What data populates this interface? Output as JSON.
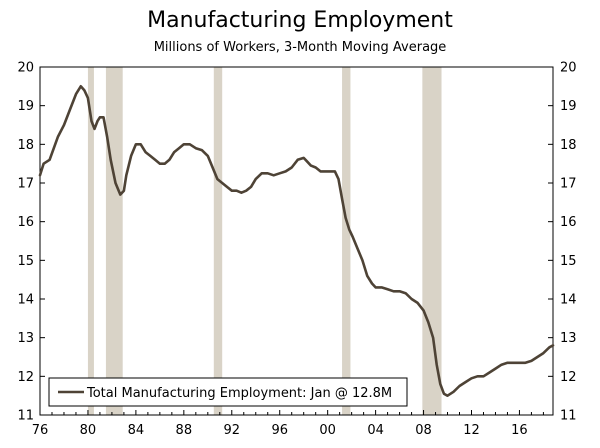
{
  "chart_data": {
    "type": "line",
    "title": "Manufacturing Employment",
    "subtitle": "Millions of Workers, 3-Month Moving Average",
    "xlabel": "",
    "ylabel": "",
    "xlim": [
      1976,
      2018.8
    ],
    "ylim": [
      11,
      20
    ],
    "x_ticks": [
      1976,
      1980,
      1984,
      1988,
      1992,
      1996,
      2000,
      2004,
      2008,
      2012,
      2016
    ],
    "x_tick_labels": [
      "76",
      "80",
      "84",
      "88",
      "92",
      "96",
      "00",
      "04",
      "08",
      "12",
      "16"
    ],
    "y_ticks": [
      11,
      12,
      13,
      14,
      15,
      16,
      17,
      18,
      19,
      20
    ],
    "y_tick_labels": [
      "11",
      "12",
      "13",
      "14",
      "15",
      "16",
      "17",
      "18",
      "19",
      "20"
    ],
    "recessions": [
      [
        1980.0,
        1980.5
      ],
      [
        1981.5,
        1982.9
      ],
      [
        1990.5,
        1991.2
      ],
      [
        2001.2,
        2001.9
      ],
      [
        2007.9,
        2009.5
      ]
    ],
    "legend": {
      "position": "bottom-left",
      "label": "Total Manufacturing Employment: Jan @ 12.8M"
    },
    "colors": {
      "line": "#4e4336",
      "recession": "#d9d3c7",
      "axis": "#000000"
    },
    "series": [
      {
        "name": "Total Manufacturing Employment: Jan @ 12.8M",
        "x": [
          1976.0,
          1976.3,
          1976.8,
          1977.5,
          1978.0,
          1978.5,
          1979.0,
          1979.4,
          1979.7,
          1980.0,
          1980.3,
          1980.55,
          1980.8,
          1981.0,
          1981.3,
          1981.6,
          1981.9,
          1982.3,
          1982.7,
          1983.0,
          1983.2,
          1983.6,
          1984.0,
          1984.4,
          1984.8,
          1985.2,
          1985.6,
          1986.0,
          1986.4,
          1986.8,
          1987.2,
          1987.6,
          1988.0,
          1988.5,
          1989.0,
          1989.5,
          1990.0,
          1990.4,
          1990.8,
          1991.2,
          1991.6,
          1992.0,
          1992.4,
          1992.8,
          1993.2,
          1993.6,
          1994.0,
          1994.5,
          1995.0,
          1995.5,
          1996.0,
          1996.5,
          1997.0,
          1997.5,
          1998.0,
          1998.3,
          1998.6,
          1999.0,
          1999.4,
          1999.8,
          2000.2,
          2000.6,
          2000.9,
          2001.2,
          2001.5,
          2001.8,
          2002.1,
          2002.5,
          2002.9,
          2003.3,
          2003.7,
          2004.0,
          2004.5,
          2005.0,
          2005.5,
          2006.0,
          2006.5,
          2007.0,
          2007.5,
          2008.0,
          2008.4,
          2008.8,
          2009.1,
          2009.4,
          2009.7,
          2010.0,
          2010.5,
          2011.0,
          2011.5,
          2012.0,
          2012.5,
          2013.0,
          2013.5,
          2014.0,
          2014.5,
          2015.0,
          2015.5,
          2016.0,
          2016.5,
          2017.0,
          2017.5,
          2018.0,
          2018.5,
          2018.8
        ],
        "values": [
          17.2,
          17.5,
          17.6,
          18.2,
          18.5,
          18.9,
          19.3,
          19.5,
          19.4,
          19.2,
          18.6,
          18.4,
          18.6,
          18.7,
          18.7,
          18.2,
          17.6,
          17.0,
          16.7,
          16.8,
          17.2,
          17.7,
          18.0,
          18.0,
          17.8,
          17.7,
          17.6,
          17.5,
          17.5,
          17.6,
          17.8,
          17.9,
          18.0,
          18.0,
          17.9,
          17.85,
          17.7,
          17.4,
          17.1,
          17.0,
          16.9,
          16.8,
          16.8,
          16.75,
          16.8,
          16.9,
          17.1,
          17.25,
          17.25,
          17.2,
          17.25,
          17.3,
          17.4,
          17.6,
          17.65,
          17.55,
          17.45,
          17.4,
          17.3,
          17.3,
          17.3,
          17.3,
          17.1,
          16.6,
          16.1,
          15.8,
          15.6,
          15.3,
          15.0,
          14.6,
          14.4,
          14.3,
          14.3,
          14.25,
          14.2,
          14.2,
          14.15,
          14.0,
          13.9,
          13.7,
          13.4,
          13.0,
          12.3,
          11.8,
          11.55,
          11.5,
          11.6,
          11.75,
          11.85,
          11.95,
          12.0,
          12.0,
          12.1,
          12.2,
          12.3,
          12.35,
          12.35,
          12.35,
          12.35,
          12.4,
          12.5,
          12.6,
          12.75,
          12.8
        ]
      }
    ]
  }
}
